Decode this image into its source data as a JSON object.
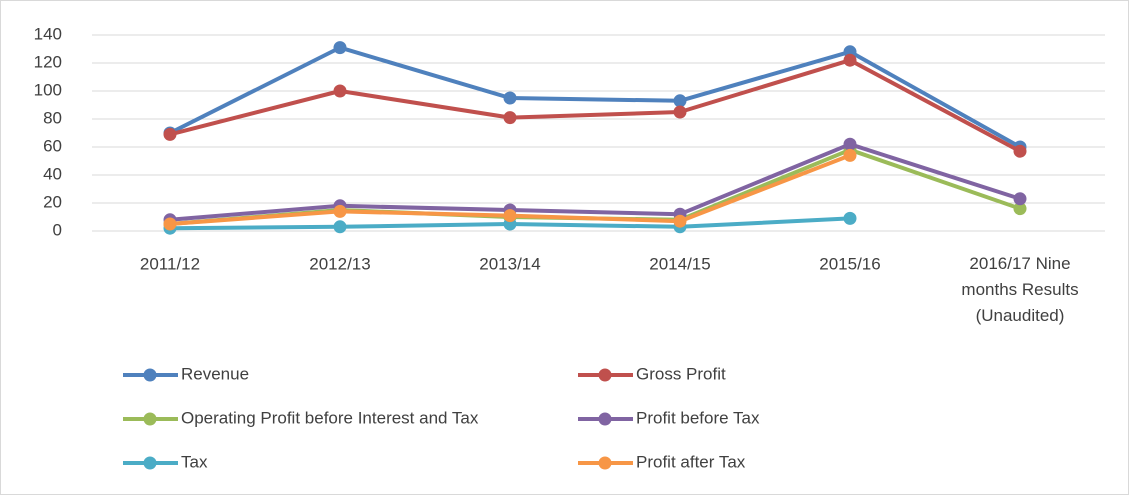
{
  "chart_data": {
    "type": "line",
    "categories": [
      "2011/12",
      "2012/13",
      "2013/14",
      "2014/15",
      "2015/16",
      "2016/17 Nine months Results (Unaudited)"
    ],
    "series": [
      {
        "name": "Revenue",
        "color": "#4f81bd",
        "values": [
          70,
          131,
          95,
          93,
          128,
          60
        ]
      },
      {
        "name": "Gross Profit",
        "color": "#c0504d",
        "values": [
          69,
          100,
          81,
          85,
          122,
          57
        ]
      },
      {
        "name": "Operating Profit before Interest and Tax",
        "color": "#9bbb59",
        "values": [
          5,
          15,
          10,
          8,
          58,
          16
        ]
      },
      {
        "name": "Profit before Tax",
        "color": "#8064a2",
        "values": [
          8,
          18,
          15,
          12,
          62,
          23
        ]
      },
      {
        "name": "Tax",
        "color": "#4bacc6",
        "values": [
          2,
          3,
          5,
          3,
          9,
          null
        ]
      },
      {
        "name": "Profit after Tax",
        "color": "#f79646",
        "values": [
          5,
          14,
          11,
          7,
          54,
          null
        ]
      }
    ],
    "ylim": [
      0,
      140
    ],
    "yticks": [
      0,
      20,
      40,
      60,
      80,
      100,
      120,
      140
    ],
    "grid": true,
    "legend": "bottom"
  }
}
